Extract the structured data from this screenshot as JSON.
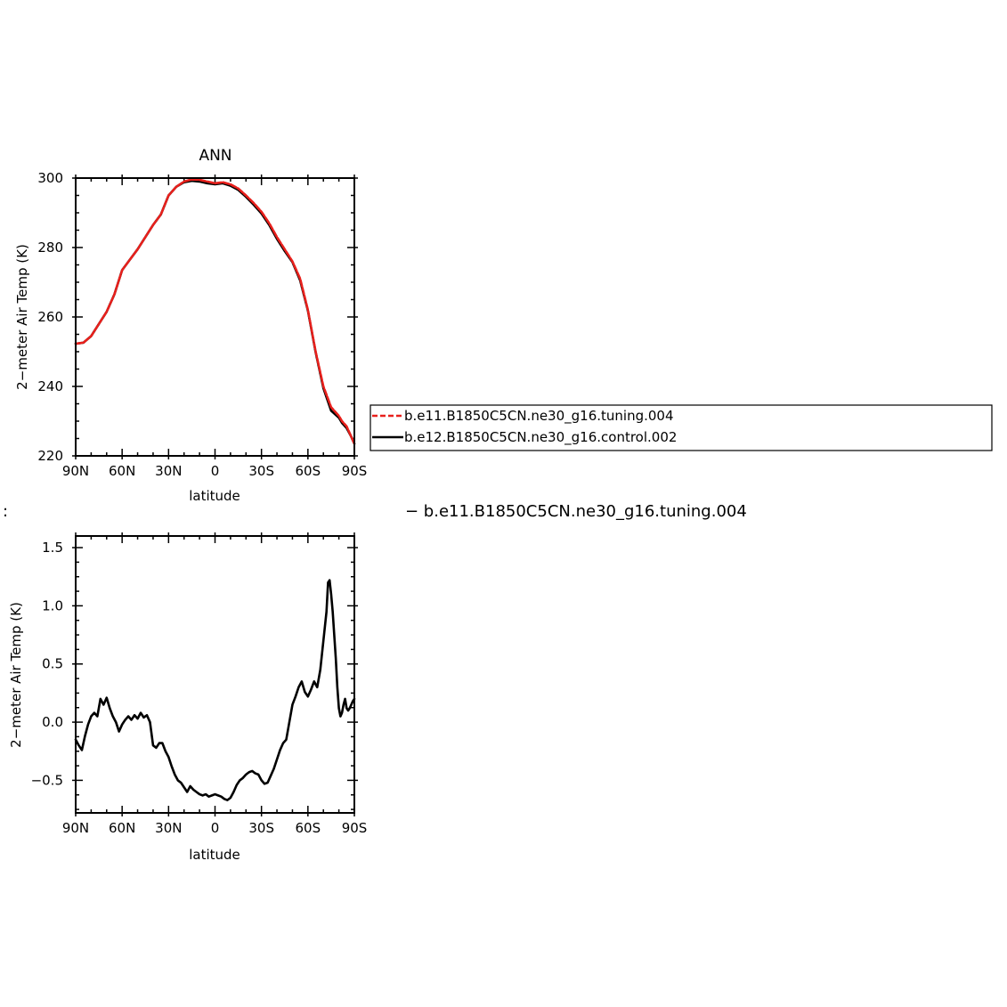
{
  "chart_data": [
    {
      "type": "line",
      "title": "ANN",
      "xlabel": "latitude",
      "ylabel": "2−meter Air Temp (K)",
      "xlim": [
        90,
        -90
      ],
      "ylim": [
        220,
        300
      ],
      "x_tick_values": [
        90,
        60,
        30,
        0,
        -30,
        -60,
        -90
      ],
      "x_tick_labels": [
        "90N",
        "60N",
        "30N",
        "0",
        "30S",
        "60S",
        "90S"
      ],
      "y_tick_values": [
        220,
        240,
        260,
        280,
        300
      ],
      "y_tick_labels": [
        "220",
        "240",
        "260",
        "280",
        "300"
      ],
      "legend_position": "right",
      "x": [
        90,
        85,
        80,
        75,
        70,
        65,
        60,
        55,
        50,
        45,
        40,
        35,
        30,
        25,
        20,
        15,
        10,
        5,
        0,
        -5,
        -10,
        -15,
        -20,
        -25,
        -30,
        -35,
        -40,
        -45,
        -50,
        -55,
        -60,
        -65,
        -70,
        -75,
        -80,
        -82,
        -85,
        -88,
        -90
      ],
      "series": [
        {
          "name": "b.e11.B1850C5CN.ne30_g16.tuning.004",
          "color": "#e8201c",
          "dashed": true,
          "values": [
            252.3,
            252.6,
            254.5,
            258.0,
            261.5,
            266.5,
            273.5,
            276.5,
            279.5,
            283.0,
            286.5,
            289.5,
            295.0,
            297.5,
            299.0,
            299.6,
            299.5,
            299.0,
            298.5,
            298.8,
            298.2,
            297.0,
            295.0,
            292.8,
            290.3,
            287.0,
            283.0,
            279.5,
            276.0,
            271.0,
            262.0,
            250.0,
            240.0,
            234.0,
            231.5,
            230.0,
            228.5,
            225.5,
            223.5
          ]
        },
        {
          "name": "b.e12.B1850C5CN.ne30_g16.control.002",
          "color": "#000000",
          "dashed": false,
          "values": [
            252.3,
            252.6,
            254.5,
            258.0,
            261.5,
            266.5,
            273.5,
            276.5,
            279.5,
            283.0,
            286.5,
            289.5,
            295.0,
            297.5,
            298.8,
            299.2,
            299.0,
            298.5,
            298.2,
            298.5,
            297.8,
            296.6,
            294.6,
            292.3,
            289.8,
            286.5,
            282.5,
            279.0,
            275.8,
            270.5,
            261.8,
            249.8,
            239.5,
            233.0,
            231.0,
            229.5,
            228.0,
            225.5,
            223.5
          ]
        }
      ]
    },
    {
      "type": "line",
      "title": "− b.e11.B1850C5CN.ne30_g16.tuning.004",
      "xlabel": "latitude",
      "ylabel": "2−meter Air Temp (K)",
      "xlim": [
        90,
        -90
      ],
      "ylim": [
        -0.78,
        1.6
      ],
      "x_tick_values": [
        90,
        60,
        30,
        0,
        -30,
        -60,
        -90
      ],
      "x_tick_labels": [
        "90N",
        "60N",
        "30N",
        "0",
        "30S",
        "60S",
        "90S"
      ],
      "y_tick_values": [
        -0.5,
        0.0,
        0.5,
        1.0,
        1.5
      ],
      "y_tick_labels": [
        "−0.5",
        "0.0",
        "0.5",
        "1.0",
        "1.5"
      ],
      "x": [
        90,
        88,
        86,
        84,
        82,
        80,
        78,
        76,
        74,
        72,
        70,
        68,
        66,
        64,
        62,
        60,
        58,
        56,
        54,
        52,
        50,
        48,
        46,
        44,
        42,
        40,
        38,
        36,
        34,
        32,
        30,
        28,
        26,
        24,
        22,
        20,
        18,
        16,
        14,
        12,
        10,
        8,
        6,
        4,
        2,
        0,
        -2,
        -4,
        -6,
        -8,
        -10,
        -12,
        -14,
        -16,
        -18,
        -20,
        -22,
        -24,
        -26,
        -28,
        -30,
        -32,
        -34,
        -36,
        -38,
        -40,
        -42,
        -44,
        -46,
        -48,
        -50,
        -52,
        -54,
        -56,
        -58,
        -60,
        -62,
        -64,
        -66,
        -68,
        -70,
        -72,
        -73,
        -74,
        -75,
        -76,
        -77,
        -78,
        -79,
        -80,
        -81,
        -82,
        -83,
        -84,
        -85,
        -86,
        -87,
        -88,
        -89,
        -90
      ],
      "series": [
        {
          "name": "",
          "color": "#000000",
          "dashed": false,
          "values": [
            -0.15,
            -0.2,
            -0.24,
            -0.12,
            -0.02,
            0.05,
            0.08,
            0.05,
            0.2,
            0.15,
            0.21,
            0.12,
            0.05,
            0.0,
            -0.08,
            -0.02,
            0.02,
            0.05,
            0.02,
            0.06,
            0.03,
            0.08,
            0.04,
            0.06,
            0.0,
            -0.2,
            -0.22,
            -0.18,
            -0.18,
            -0.25,
            -0.3,
            -0.38,
            -0.45,
            -0.5,
            -0.52,
            -0.56,
            -0.6,
            -0.55,
            -0.58,
            -0.6,
            -0.62,
            -0.63,
            -0.62,
            -0.64,
            -0.63,
            -0.62,
            -0.63,
            -0.64,
            -0.66,
            -0.67,
            -0.65,
            -0.6,
            -0.54,
            -0.5,
            -0.48,
            -0.45,
            -0.43,
            -0.42,
            -0.44,
            -0.45,
            -0.5,
            -0.53,
            -0.52,
            -0.46,
            -0.4,
            -0.32,
            -0.24,
            -0.18,
            -0.15,
            0.0,
            0.15,
            0.22,
            0.3,
            0.35,
            0.26,
            0.22,
            0.28,
            0.35,
            0.3,
            0.45,
            0.7,
            0.95,
            1.2,
            1.22,
            1.1,
            0.95,
            0.75,
            0.55,
            0.3,
            0.12,
            0.05,
            0.08,
            0.15,
            0.2,
            0.12,
            0.1,
            0.12,
            0.15,
            0.18,
            0.2
          ]
        }
      ]
    }
  ]
}
